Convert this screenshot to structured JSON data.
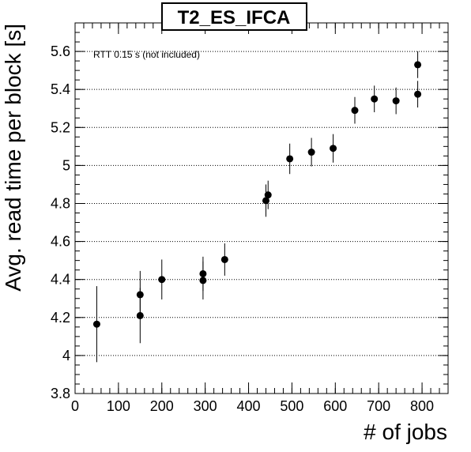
{
  "chart_data": {
    "type": "scatter",
    "title": "T2_ES_IFCA",
    "xlabel": "# of jobs",
    "ylabel": "Avg. read time per block [s]",
    "annotation": "RTT 0.15 s (not included)",
    "xlim": [
      0,
      860
    ],
    "ylim": [
      3.8,
      5.75
    ],
    "x_ticks": [
      0,
      100,
      200,
      300,
      400,
      500,
      600,
      700,
      800
    ],
    "y_ticks": [
      3.8,
      4,
      4.2,
      4.4,
      4.6,
      4.8,
      5,
      5.2,
      5.4,
      5.6
    ],
    "y_tick_labels": [
      "3.8",
      "4",
      "4.2",
      "4.4",
      "4.6",
      "4.8",
      "5",
      "5.2",
      "5.4",
      "5.6"
    ],
    "grid": "horizontal dotted",
    "points": [
      {
        "x": 50,
        "y": 4.165,
        "err": 0.2
      },
      {
        "x": 150,
        "y": 4.21,
        "err": 0.145
      },
      {
        "x": 150,
        "y": 4.32,
        "err": 0.125
      },
      {
        "x": 200,
        "y": 4.4,
        "err": 0.105
      },
      {
        "x": 295,
        "y": 4.395,
        "err": 0.1
      },
      {
        "x": 295,
        "y": 4.43,
        "err": 0.09
      },
      {
        "x": 345,
        "y": 4.505,
        "err": 0.085
      },
      {
        "x": 440,
        "y": 4.815,
        "err": 0.085
      },
      {
        "x": 445,
        "y": 4.845,
        "err": 0.075
      },
      {
        "x": 495,
        "y": 5.035,
        "err": 0.08
      },
      {
        "x": 545,
        "y": 5.07,
        "err": 0.075
      },
      {
        "x": 595,
        "y": 5.09,
        "err": 0.075
      },
      {
        "x": 645,
        "y": 5.29,
        "err": 0.07
      },
      {
        "x": 690,
        "y": 5.35,
        "err": 0.07
      },
      {
        "x": 740,
        "y": 5.34,
        "err": 0.07
      },
      {
        "x": 790,
        "y": 5.53,
        "err": 0.07
      },
      {
        "x": 790,
        "y": 5.375,
        "err": 0.07
      }
    ]
  }
}
